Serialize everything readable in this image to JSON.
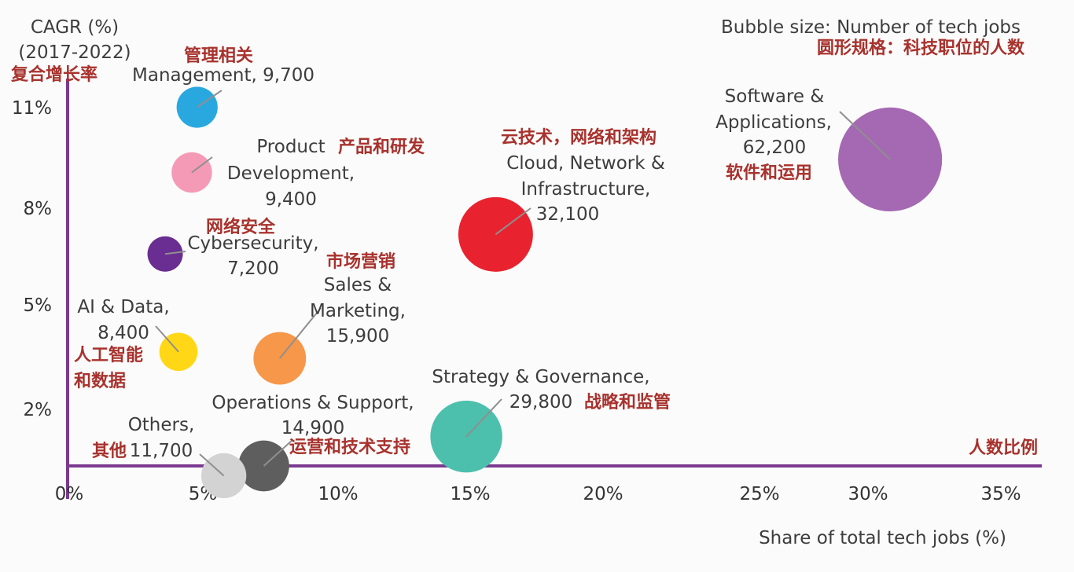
{
  "chart_data": {
    "type": "scatter",
    "title": "",
    "ylabel": "CAGR (%)",
    "ylabel_period": "(2017-2022)",
    "ylabel_cn": "复合增长率",
    "xlabel": "Share of total tech jobs (%)",
    "xlabel_cn": "人数比例",
    "legend": "Bubble size: Number of tech jobs",
    "legend_cn": "圆形规格：科技职位的人数",
    "xlim": [
      0,
      35
    ],
    "x_ticks": [
      "0%",
      "5%",
      "10%",
      "15%",
      "20%",
      "25%",
      "30%",
      "35%"
    ],
    "y_ticks": [
      "2%",
      "5%",
      "8%",
      "11%"
    ],
    "colors": {
      "axis": "#7b3a8f",
      "cn_text": "#a8322d",
      "text": "#3d3d3d",
      "leader": "#8f8f8f"
    },
    "series": [
      {
        "name": "Management",
        "label_lines": [
          "Management, 9,700"
        ],
        "cn": "管理相关",
        "x": 4.8,
        "y": 11.0,
        "jobs": 9700,
        "color": "#29a8e0"
      },
      {
        "name": "Product Development",
        "label_lines": [
          "Product",
          "Development,",
          "9,400"
        ],
        "cn": "产品和研发",
        "x": 4.6,
        "y": 9.0,
        "jobs": 9400,
        "color": "#f49ab7"
      },
      {
        "name": "Cybersecurity",
        "label_lines": [
          "Cybersecurity,",
          "7,200"
        ],
        "cn": "网络安全",
        "x": 3.6,
        "y": 6.5,
        "jobs": 7200,
        "color": "#6a2d91"
      },
      {
        "name": "AI & Data",
        "label_lines": [
          "AI & Data,",
          "8,400"
        ],
        "cn": "人工智能",
        "cn2": "和数据",
        "x": 4.1,
        "y": 3.5,
        "jobs": 8400,
        "color": "#ffd716"
      },
      {
        "name": "Sales & Marketing",
        "label_lines": [
          "Sales &",
          "Marketing,",
          "15,900"
        ],
        "cn": "市场营销",
        "x": 7.9,
        "y": 3.3,
        "jobs": 15900,
        "color": "#f7974a"
      },
      {
        "name": "Cloud, Network & Infrastructure",
        "label_lines": [
          "Cloud, Network &",
          "Infrastructure,",
          "32,100"
        ],
        "cn": "云技术，网络和架构",
        "x": 16.0,
        "y": 7.1,
        "jobs": 32100,
        "color": "#e8232f"
      },
      {
        "name": "Software & Applications",
        "label_lines": [
          "Software &",
          "Applications,",
          "62,200"
        ],
        "cn": "软件和运用",
        "x": 30.8,
        "y": 9.4,
        "jobs": 62200,
        "color": "#a568b2"
      },
      {
        "name": "Strategy & Governance",
        "label_lines": [
          "Strategy & Governance,",
          "29,800"
        ],
        "cn": "战略和监管",
        "x": 14.9,
        "y": 0.9,
        "jobs": 29800,
        "color": "#4cc0ad"
      },
      {
        "name": "Operations & Support",
        "label_lines": [
          "Operations & Support,",
          "14,900"
        ],
        "cn": "运营和技术支持",
        "x": 7.3,
        "y": 0.0,
        "jobs": 14900,
        "color": "#5e5e5e"
      },
      {
        "name": "Others",
        "label_lines": [
          "Others,",
          "11,700"
        ],
        "cn": "其他",
        "x": 5.8,
        "y": -0.3,
        "jobs": 11700,
        "color": "#d3d3d3"
      }
    ]
  }
}
